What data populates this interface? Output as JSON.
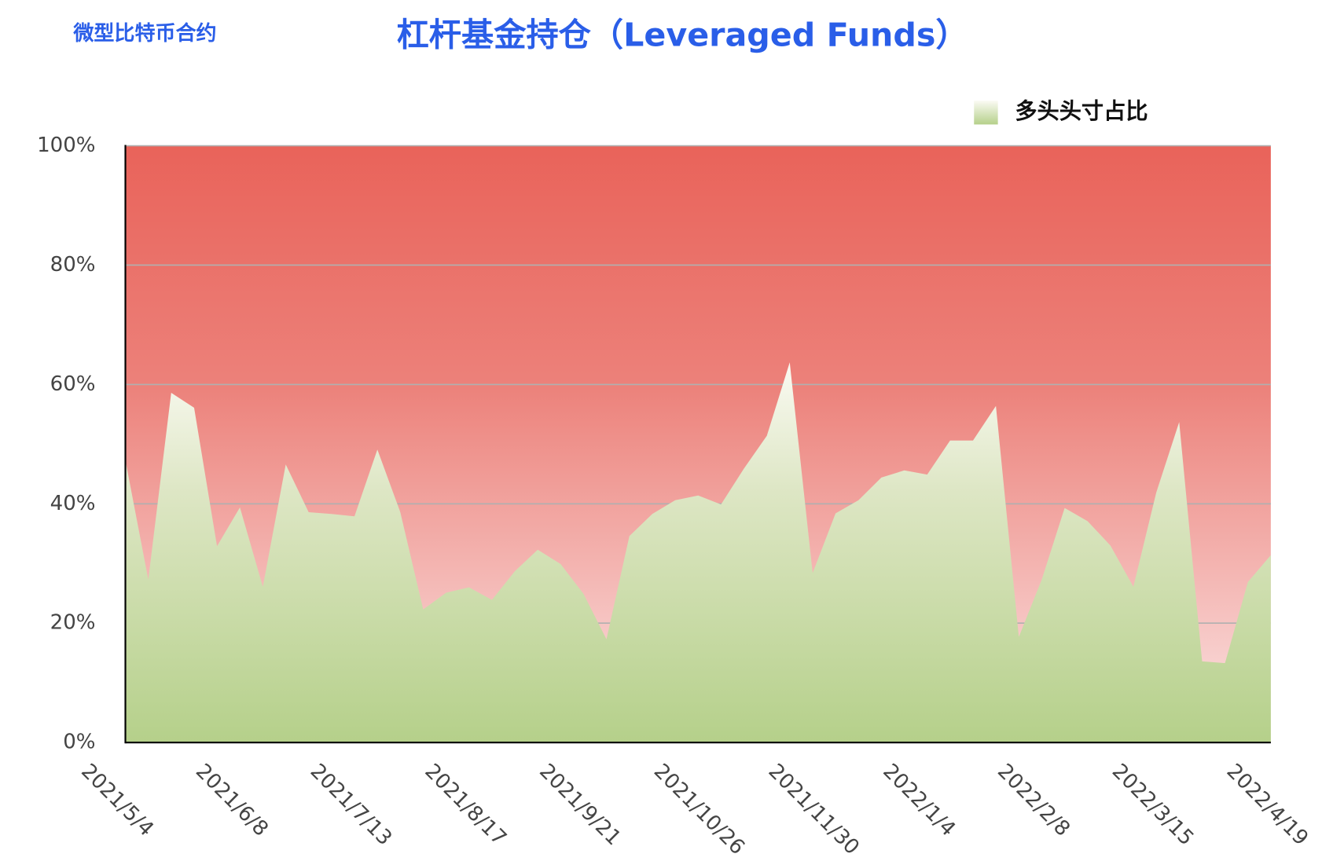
{
  "chart_data": {
    "type": "area",
    "subtitle": "微型比特币合约",
    "title": "杠杆基金持仓（Leveraged Funds）",
    "categories": [
      "2021/5/4",
      null,
      null,
      null,
      null,
      "2021/6/8",
      null,
      null,
      null,
      null,
      "2021/7/13",
      null,
      null,
      null,
      null,
      "2021/8/17",
      null,
      null,
      null,
      null,
      "2021/9/21",
      null,
      null,
      null,
      null,
      "2021/10/26",
      null,
      null,
      null,
      null,
      "2021/11/30",
      null,
      null,
      null,
      null,
      "2022/1/4",
      null,
      null,
      null,
      null,
      "2022/2/8",
      null,
      null,
      null,
      null,
      "2022/3/15",
      null,
      null,
      null,
      null,
      "2022/4/19"
    ],
    "series": [
      {
        "name": "多头头寸占比",
        "color": "#b5d08a",
        "values": [
          47.3,
          27.3,
          58.6,
          56.1,
          32.9,
          39.4,
          26.1,
          46.6,
          38.6,
          38.3,
          37.9,
          49.1,
          38.6,
          22.3,
          25.1,
          26.0,
          23.9,
          28.7,
          32.3,
          29.9,
          24.9,
          17.3,
          34.6,
          38.3,
          40.6,
          41.4,
          39.9,
          45.9,
          51.4,
          63.7,
          28.4,
          38.4,
          40.6,
          44.4,
          45.6,
          44.9,
          50.6,
          50.6,
          56.4,
          17.7,
          27.3,
          39.3,
          37.1,
          33.0,
          26.1,
          41.9,
          53.7,
          13.6,
          13.3,
          26.9,
          31.4
        ]
      }
    ],
    "ylim": [
      0,
      100
    ],
    "yticks": [
      {
        "value": 0,
        "label": "0%"
      },
      {
        "value": 20,
        "label": "20%"
      },
      {
        "value": 40,
        "label": "40%"
      },
      {
        "value": 60,
        "label": "60%"
      },
      {
        "value": 80,
        "label": "80%"
      },
      {
        "value": 100,
        "label": "100%"
      }
    ],
    "grid": true
  }
}
